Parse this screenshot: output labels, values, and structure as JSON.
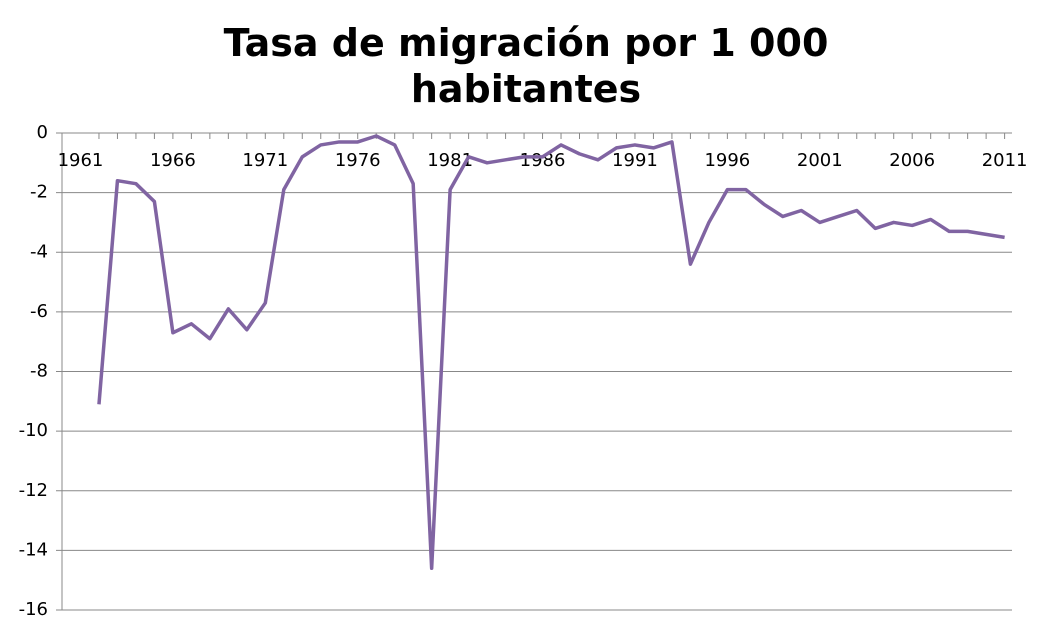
{
  "chart_data": {
    "type": "line",
    "title": "Tasa de migración por 1 000 habitantes",
    "x": [
      1962,
      1963,
      1964,
      1965,
      1966,
      1967,
      1968,
      1969,
      1970,
      1971,
      1972,
      1973,
      1974,
      1975,
      1976,
      1977,
      1978,
      1979,
      1980,
      1981,
      1982,
      1983,
      1984,
      1985,
      1986,
      1987,
      1988,
      1989,
      1990,
      1991,
      1992,
      1993,
      1994,
      1995,
      1996,
      1997,
      1998,
      1999,
      2000,
      2001,
      2002,
      2003,
      2004,
      2005,
      2006,
      2007,
      2008,
      2009,
      2010,
      2011
    ],
    "series": [
      {
        "name": "Tasa de migración",
        "color": "#8064a2",
        "values": [
          -9.1,
          -1.6,
          -1.7,
          -2.3,
          -6.7,
          -6.4,
          -6.9,
          -5.9,
          -6.6,
          -5.7,
          -1.9,
          -0.8,
          -0.4,
          -0.3,
          -0.3,
          -0.1,
          -0.4,
          -1.7,
          -14.6,
          -1.9,
          -0.8,
          -1.0,
          -0.9,
          -0.8,
          -0.8,
          -0.4,
          -0.7,
          -0.9,
          -0.5,
          -0.4,
          -0.5,
          -0.3,
          -4.4,
          -3.0,
          -1.9,
          -1.9,
          -2.4,
          -2.8,
          -2.6,
          -3.0,
          -2.8,
          -2.6,
          -3.2,
          -3.0,
          -3.1,
          -2.9,
          -3.3,
          -3.3,
          -3.4,
          -3.5
        ]
      }
    ],
    "xlim": [
      1960,
      2011.4
    ],
    "xticks": [
      1961,
      1966,
      1971,
      1976,
      1981,
      1986,
      1991,
      1996,
      2001,
      2006,
      2011
    ],
    "ylim": [
      -16,
      0
    ],
    "yticks": [
      0,
      -2,
      -4,
      -6,
      -8,
      -10,
      -12,
      -14,
      -16
    ],
    "grid": true
  }
}
